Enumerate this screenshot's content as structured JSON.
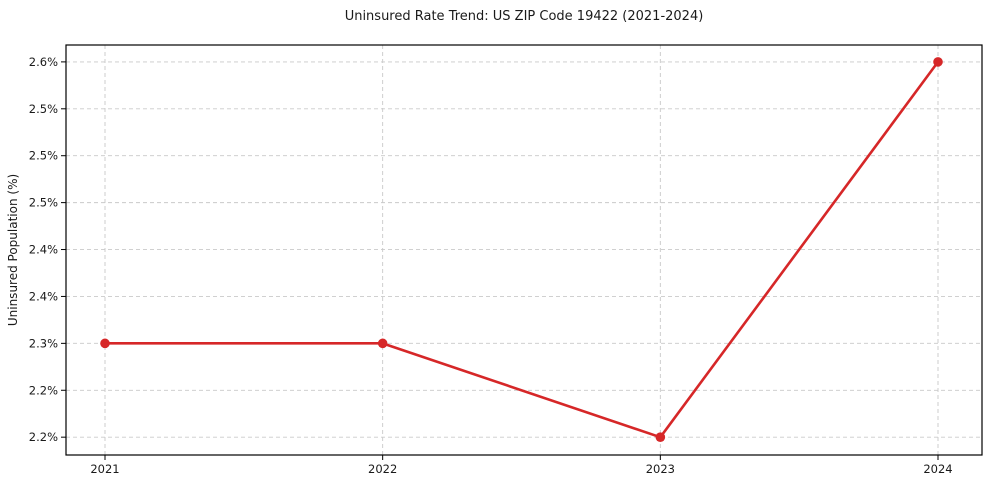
{
  "chart_data": {
    "type": "line",
    "title": "Uninsured Rate Trend: US ZIP Code 19422 (2021-2024)",
    "xlabel": "",
    "ylabel": "Uninsured Population (%)",
    "x": [
      "2021",
      "2022",
      "2023",
      "2024"
    ],
    "values": [
      2.3,
      2.3,
      2.2,
      2.6
    ],
    "unit": "%",
    "ylim": [
      2.181,
      2.618
    ],
    "y_ticks": [
      2.2,
      2.25,
      2.3,
      2.35,
      2.4,
      2.45,
      2.5,
      2.55,
      2.6
    ],
    "y_tick_labels": [
      "2.2%",
      "2.2%",
      "2.3%",
      "2.4%",
      "2.4%",
      "2.5%",
      "2.5%",
      "2.5%",
      "2.6%"
    ],
    "x_tick_labels": [
      "2021",
      "2022",
      "2023",
      "2024"
    ],
    "grid": true,
    "grid_style": "dashed",
    "legend_position": "none",
    "line_color": "#d62728",
    "marker": "circle",
    "grid_color": "#c9c9c9",
    "frame_color": "#000000",
    "text_color": "#1a1a1a",
    "background_color": "#ffffff"
  }
}
